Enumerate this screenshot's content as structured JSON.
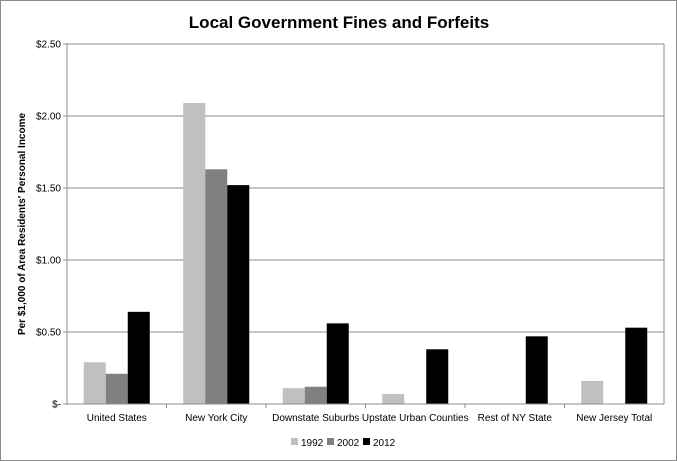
{
  "chart_data": {
    "type": "bar",
    "title": "Local Government Fines and Forfeits",
    "xlabel": "",
    "ylabel": "Per $1,000 of Area Residents' Personal Income",
    "ylim": [
      0,
      2.5
    ],
    "yticks": [
      {
        "value": 0,
        "label": "$-"
      },
      {
        "value": 0.5,
        "label": "$0.50"
      },
      {
        "value": 1.0,
        "label": "$1.00"
      },
      {
        "value": 1.5,
        "label": "$1.50"
      },
      {
        "value": 2.0,
        "label": "$2.00"
      },
      {
        "value": 2.5,
        "label": "$2.50"
      }
    ],
    "grid": true,
    "legend_position": "bottom",
    "categories": [
      "United States",
      "New York City",
      "Downstate Suburbs",
      "Upstate Urban Counties",
      "Rest of NY State",
      "New Jersey Total"
    ],
    "series": [
      {
        "name": "1992",
        "color": "#c0c0c0",
        "values": [
          0.29,
          2.09,
          0.11,
          0.07,
          0.0,
          0.16
        ]
      },
      {
        "name": "2002",
        "color": "#808080",
        "values": [
          0.21,
          1.63,
          0.12,
          0.0,
          0.0,
          0.0
        ]
      },
      {
        "name": "2012",
        "color": "#000000",
        "values": [
          0.64,
          1.52,
          0.56,
          0.38,
          0.47,
          0.53
        ]
      }
    ]
  }
}
